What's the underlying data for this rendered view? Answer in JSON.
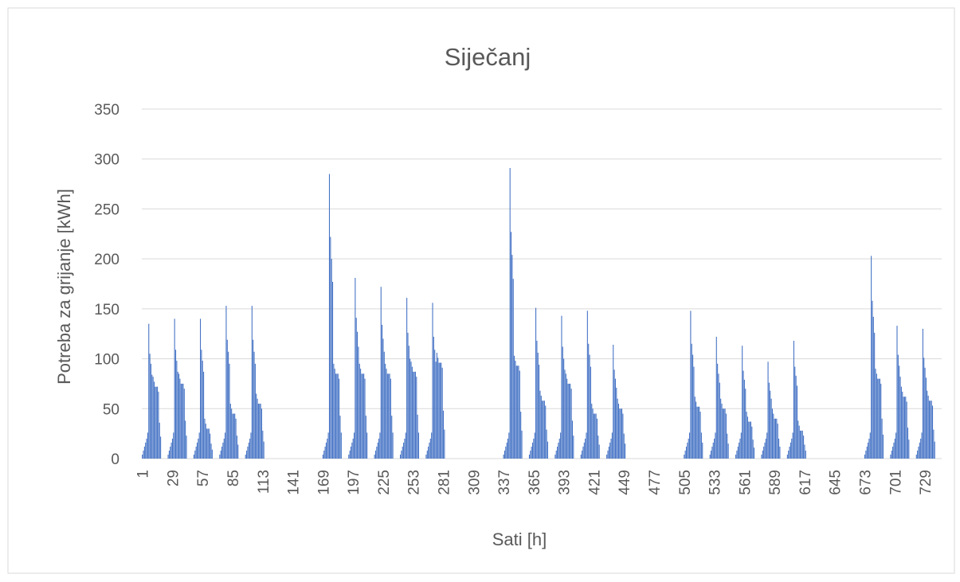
{
  "chart_data": {
    "type": "bar",
    "title": "Siječanj",
    "x_label": "Sati [h]",
    "y_label": "Potreba za grijanje [kWh]",
    "color": "#4472c4",
    "grid": true,
    "ylim": [
      0,
      350
    ],
    "yticks": [
      0,
      50,
      100,
      150,
      200,
      250,
      300,
      350
    ],
    "categories": [
      "1",
      null,
      null,
      null,
      null,
      null,
      null,
      null,
      null,
      null,
      null,
      null,
      null,
      null,
      null,
      null,
      null,
      null,
      null,
      null,
      null,
      null,
      null,
      null,
      null,
      null,
      null,
      null,
      "29",
      null,
      null,
      null,
      null,
      null,
      null,
      null,
      null,
      null,
      null,
      null,
      null,
      null,
      null,
      null,
      null,
      null,
      null,
      null,
      null,
      null,
      null,
      null,
      null,
      null,
      null,
      null,
      "57",
      null,
      null,
      null,
      null,
      null,
      null,
      null,
      null,
      null,
      null,
      null,
      null,
      null,
      null,
      null,
      null,
      null,
      null,
      null,
      null,
      null,
      null,
      null,
      null,
      null,
      null,
      null,
      "85",
      null,
      null,
      null,
      null,
      null,
      null,
      null,
      null,
      null,
      null,
      null,
      null,
      null,
      null,
      null,
      null,
      null,
      null,
      null,
      null,
      null,
      null,
      null,
      null,
      null,
      null,
      null,
      "113",
      null,
      null,
      null,
      null,
      null,
      null,
      null,
      null,
      null,
      null,
      null,
      null,
      null,
      null,
      null,
      null,
      null,
      null,
      null,
      null,
      null,
      null,
      null,
      null,
      null,
      null,
      null,
      "141",
      null,
      null,
      null,
      null,
      null,
      null,
      null,
      null,
      null,
      null,
      null,
      null,
      null,
      null,
      null,
      null,
      null,
      null,
      null,
      null,
      null,
      null,
      null,
      null,
      null,
      null,
      null,
      "169",
      null,
      null,
      null,
      null,
      null,
      null,
      null,
      null,
      null,
      null,
      null,
      null,
      null,
      null,
      null,
      null,
      null,
      null,
      null,
      null,
      null,
      null,
      null,
      null,
      null,
      null,
      null,
      "197",
      null,
      null,
      null,
      null,
      null,
      null,
      null,
      null,
      null,
      null,
      null,
      null,
      null,
      null,
      null,
      null,
      null,
      null,
      null,
      null,
      null,
      null,
      null,
      null,
      null,
      null,
      null,
      "225",
      null,
      null,
      null,
      null,
      null,
      null,
      null,
      null,
      null,
      null,
      null,
      null,
      null,
      null,
      null,
      null,
      null,
      null,
      null,
      null,
      null,
      null,
      null,
      null,
      null,
      null,
      null,
      "253",
      null,
      null,
      null,
      null,
      null,
      null,
      null,
      null,
      null,
      null,
      null,
      null,
      null,
      null,
      null,
      null,
      null,
      null,
      null,
      null,
      null,
      null,
      null,
      null,
      null,
      null,
      null,
      "281",
      null,
      null,
      null,
      null,
      null,
      null,
      null,
      null,
      null,
      null,
      null,
      null,
      null,
      null,
      null,
      null,
      null,
      null,
      null,
      null,
      null,
      null,
      null,
      null,
      null,
      null,
      null,
      "309",
      null,
      null,
      null,
      null,
      null,
      null,
      null,
      null,
      null,
      null,
      null,
      null,
      null,
      null,
      null,
      null,
      null,
      null,
      null,
      null,
      null,
      null,
      null,
      null,
      null,
      null,
      null,
      "337",
      null,
      null,
      null,
      null,
      null,
      null,
      null,
      null,
      null,
      null,
      null,
      null,
      null,
      null,
      null,
      null,
      null,
      null,
      null,
      null,
      null,
      null,
      null,
      null,
      null,
      null,
      null,
      "365",
      null,
      null,
      null,
      null,
      null,
      null,
      null,
      null,
      null,
      null,
      null,
      null,
      null,
      null,
      null,
      null,
      null,
      null,
      null,
      null,
      null,
      null,
      null,
      null,
      null,
      null,
      null,
      "393",
      null,
      null,
      null,
      null,
      null,
      null,
      null,
      null,
      null,
      null,
      null,
      null,
      null,
      null,
      null,
      null,
      null,
      null,
      null,
      null,
      null,
      null,
      null,
      null,
      null,
      null,
      null,
      "421",
      null,
      null,
      null,
      null,
      null,
      null,
      null,
      null,
      null,
      null,
      null,
      null,
      null,
      null,
      null,
      null,
      null,
      null,
      null,
      null,
      null,
      null,
      null,
      null,
      null,
      null,
      null,
      "449",
      null,
      null,
      null,
      null,
      null,
      null,
      null,
      null,
      null,
      null,
      null,
      null,
      null,
      null,
      null,
      null,
      null,
      null,
      null,
      null,
      null,
      null,
      null,
      null,
      null,
      null,
      null,
      "477",
      null,
      null,
      null,
      null,
      null,
      null,
      null,
      null,
      null,
      null,
      null,
      null,
      null,
      null,
      null,
      null,
      null,
      null,
      null,
      null,
      null,
      null,
      null,
      null,
      null,
      null,
      null,
      "505",
      null,
      null,
      null,
      null,
      null,
      null,
      null,
      null,
      null,
      null,
      null,
      null,
      null,
      null,
      null,
      null,
      null,
      null,
      null,
      null,
      null,
      null,
      null,
      null,
      null,
      null,
      null,
      "533",
      null,
      null,
      null,
      null,
      null,
      null,
      null,
      null,
      null,
      null,
      null,
      null,
      null,
      null,
      null,
      null,
      null,
      null,
      null,
      null,
      null,
      null,
      null,
      null,
      null,
      null,
      null,
      "561",
      null,
      null,
      null,
      null,
      null,
      null,
      null,
      null,
      null,
      null,
      null,
      null,
      null,
      null,
      null,
      null,
      null,
      null,
      null,
      null,
      null,
      null,
      null,
      null,
      null,
      null,
      null,
      "589",
      null,
      null,
      null,
      null,
      null,
      null,
      null,
      null,
      null,
      null,
      null,
      null,
      null,
      null,
      null,
      null,
      null,
      null,
      null,
      null,
      null,
      null,
      null,
      null,
      null,
      null,
      null,
      "617",
      null,
      null,
      null,
      null,
      null,
      null,
      null,
      null,
      null,
      null,
      null,
      null,
      null,
      null,
      null,
      null,
      null,
      null,
      null,
      null,
      null,
      null,
      null,
      null,
      null,
      null,
      null,
      "645",
      null,
      null,
      null,
      null,
      null,
      null,
      null,
      null,
      null,
      null,
      null,
      null,
      null,
      null,
      null,
      null,
      null,
      null,
      null,
      null,
      null,
      null,
      null,
      null,
      null,
      null,
      null,
      "673",
      null,
      null,
      null,
      null,
      null,
      null,
      null,
      null,
      null,
      null,
      null,
      null,
      null,
      null,
      null,
      null,
      null,
      null,
      null,
      null,
      null,
      null,
      null,
      null,
      null,
      null,
      null,
      "701",
      null,
      null,
      null,
      null,
      null,
      null,
      null,
      null,
      null,
      null,
      null,
      null,
      null,
      null,
      null,
      null,
      null,
      null,
      null,
      null,
      null,
      null,
      null,
      null,
      null,
      null,
      null,
      "729",
      null,
      null,
      null,
      null,
      null,
      null,
      null,
      null,
      null,
      null,
      null,
      null,
      null,
      null,
      null
    ],
    "values": [
      4,
      8,
      12,
      16,
      20,
      26,
      135,
      105,
      95,
      84,
      82,
      77,
      72,
      72,
      72,
      67,
      36,
      22,
      0,
      0,
      0,
      0,
      0,
      0,
      4,
      8,
      12,
      16,
      20,
      26,
      140,
      109,
      98,
      87,
      85,
      80,
      75,
      75,
      75,
      70,
      38,
      23,
      0,
      0,
      0,
      0,
      0,
      0,
      4,
      8,
      12,
      16,
      20,
      26,
      140,
      109,
      98,
      87,
      40,
      35,
      30,
      30,
      30,
      25,
      15,
      9,
      0,
      0,
      0,
      0,
      0,
      0,
      4,
      8,
      12,
      16,
      20,
      26,
      153,
      119,
      107,
      95,
      55,
      50,
      45,
      45,
      45,
      40,
      23,
      14,
      0,
      0,
      0,
      0,
      0,
      0,
      4,
      8,
      12,
      16,
      20,
      26,
      153,
      119,
      107,
      95,
      65,
      60,
      55,
      55,
      55,
      50,
      28,
      17,
      0,
      0,
      0,
      0,
      0,
      0,
      0,
      0,
      0,
      0,
      0,
      0,
      0,
      0,
      0,
      0,
      0,
      0,
      0,
      0,
      0,
      0,
      0,
      0,
      0,
      0,
      0,
      0,
      0,
      0,
      0,
      0,
      0,
      0,
      0,
      0,
      0,
      0,
      0,
      0,
      0,
      0,
      0,
      0,
      0,
      0,
      0,
      0,
      0,
      0,
      0,
      0,
      0,
      0,
      4,
      8,
      12,
      16,
      20,
      26,
      285,
      222,
      200,
      177,
      95,
      90,
      85,
      85,
      85,
      80,
      43,
      26,
      0,
      0,
      0,
      0,
      0,
      0,
      4,
      8,
      12,
      16,
      20,
      26,
      181,
      141,
      127,
      112,
      95,
      90,
      85,
      85,
      85,
      80,
      43,
      26,
      0,
      0,
      0,
      0,
      0,
      0,
      4,
      8,
      12,
      16,
      20,
      26,
      172,
      134,
      120,
      107,
      95,
      90,
      85,
      85,
      85,
      80,
      43,
      26,
      0,
      0,
      0,
      0,
      0,
      0,
      4,
      8,
      12,
      16,
      20,
      26,
      161,
      126,
      113,
      100,
      97,
      92,
      87,
      87,
      87,
      82,
      44,
      26,
      0,
      0,
      0,
      0,
      0,
      0,
      4,
      8,
      12,
      16,
      20,
      26,
      156,
      122,
      109,
      97,
      106,
      101,
      96,
      96,
      96,
      91,
      48,
      29,
      0,
      0,
      0,
      0,
      0,
      0,
      0,
      0,
      0,
      0,
      0,
      0,
      0,
      0,
      0,
      0,
      0,
      0,
      0,
      0,
      0,
      0,
      0,
      0,
      0,
      0,
      0,
      0,
      0,
      0,
      0,
      0,
      0,
      0,
      0,
      0,
      0,
      0,
      0,
      0,
      0,
      0,
      0,
      0,
      0,
      0,
      0,
      0,
      0,
      0,
      0,
      0,
      0,
      0,
      4,
      8,
      12,
      16,
      20,
      26,
      291,
      227,
      204,
      180,
      103,
      98,
      93,
      93,
      93,
      88,
      47,
      28,
      0,
      0,
      0,
      0,
      0,
      0,
      4,
      8,
      12,
      16,
      20,
      26,
      151,
      118,
      106,
      94,
      68,
      63,
      58,
      58,
      58,
      53,
      29,
      17,
      0,
      0,
      0,
      0,
      0,
      0,
      4,
      8,
      12,
      16,
      20,
      26,
      143,
      112,
      100,
      89,
      85,
      80,
      75,
      75,
      75,
      70,
      38,
      23,
      0,
      0,
      0,
      0,
      0,
      0,
      4,
      8,
      12,
      16,
      20,
      26,
      148,
      115,
      104,
      92,
      55,
      50,
      45,
      45,
      45,
      40,
      23,
      14,
      0,
      0,
      0,
      0,
      0,
      0,
      4,
      8,
      12,
      16,
      20,
      26,
      114,
      89,
      80,
      71,
      60,
      55,
      50,
      50,
      50,
      45,
      25,
      15,
      0,
      0,
      0,
      0,
      0,
      0,
      0,
      0,
      0,
      0,
      0,
      0,
      0,
      0,
      0,
      0,
      0,
      0,
      0,
      0,
      0,
      0,
      0,
      0,
      0,
      0,
      0,
      0,
      0,
      0,
      0,
      0,
      0,
      0,
      0,
      0,
      0,
      0,
      0,
      0,
      0,
      0,
      0,
      0,
      0,
      0,
      0,
      0,
      0,
      0,
      0,
      0,
      0,
      0,
      4,
      8,
      12,
      16,
      20,
      26,
      148,
      115,
      104,
      92,
      62,
      57,
      52,
      52,
      52,
      47,
      26,
      16,
      0,
      0,
      0,
      0,
      0,
      0,
      4,
      8,
      12,
      16,
      20,
      26,
      122,
      95,
      85,
      76,
      60,
      55,
      50,
      50,
      50,
      45,
      25,
      15,
      0,
      0,
      0,
      0,
      0,
      0,
      4,
      8,
      12,
      16,
      20,
      26,
      113,
      88,
      79,
      70,
      47,
      42,
      37,
      37,
      37,
      32,
      19,
      11,
      0,
      0,
      0,
      0,
      0,
      0,
      4,
      8,
      12,
      16,
      20,
      26,
      97,
      76,
      68,
      60,
      50,
      45,
      40,
      40,
      40,
      35,
      20,
      12,
      0,
      0,
      0,
      0,
      0,
      0,
      4,
      8,
      12,
      16,
      20,
      26,
      118,
      92,
      83,
      73,
      38,
      33,
      28,
      28,
      28,
      23,
      14,
      8,
      0,
      0,
      0,
      0,
      0,
      0,
      0,
      0,
      0,
      0,
      0,
      0,
      0,
      0,
      0,
      0,
      0,
      0,
      0,
      0,
      0,
      0,
      0,
      0,
      0,
      0,
      0,
      0,
      0,
      0,
      0,
      0,
      0,
      0,
      0,
      0,
      0,
      0,
      0,
      0,
      0,
      0,
      0,
      0,
      0,
      0,
      0,
      0,
      0,
      0,
      0,
      0,
      0,
      0,
      4,
      8,
      12,
      16,
      20,
      26,
      203,
      158,
      142,
      126,
      90,
      85,
      80,
      80,
      80,
      75,
      40,
      24,
      0,
      0,
      0,
      0,
      0,
      0,
      4,
      8,
      12,
      16,
      20,
      26,
      133,
      104,
      93,
      82,
      72,
      67,
      62,
      62,
      62,
      57,
      31,
      19,
      0,
      0,
      0,
      0,
      0,
      0,
      4,
      8,
      12,
      16,
      20,
      26,
      130,
      101,
      91,
      81,
      68,
      63,
      58,
      58,
      58,
      53,
      29,
      17,
      0,
      0,
      0,
      0,
      0,
      0
    ]
  }
}
